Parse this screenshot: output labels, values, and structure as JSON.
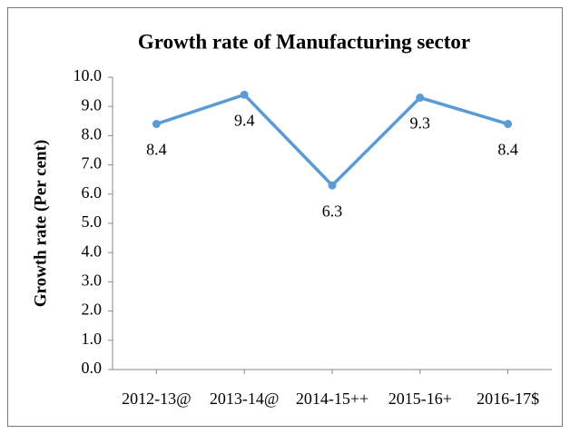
{
  "chart_data": {
    "type": "line",
    "title": "Growth rate of Manufacturing sector",
    "y_label": "Growth rate (Per cent)",
    "categories": [
      "2012-13@",
      "2013-14@",
      "2014-15++",
      "2015-16+",
      "2016-17$"
    ],
    "series": [
      {
        "name": "Growth rate",
        "color": "#5b9bd5",
        "values": [
          8.4,
          9.4,
          6.3,
          9.3,
          8.4
        ]
      }
    ],
    "ylim": [
      0,
      10
    ],
    "yticks": [
      {
        "value": 0,
        "label": "0.0"
      },
      {
        "value": 1,
        "label": "1.0"
      },
      {
        "value": 2,
        "label": "2.0"
      },
      {
        "value": 3,
        "label": "3.0"
      },
      {
        "value": 4,
        "label": "4.0"
      },
      {
        "value": 5,
        "label": "5.0"
      },
      {
        "value": 6,
        "label": "6.0"
      },
      {
        "value": 7,
        "label": "7.0"
      },
      {
        "value": 8,
        "label": "8.0"
      },
      {
        "value": 9,
        "label": "9.0"
      },
      {
        "value": 10,
        "label": "10.0"
      }
    ],
    "grid": false,
    "data_labels": true
  }
}
